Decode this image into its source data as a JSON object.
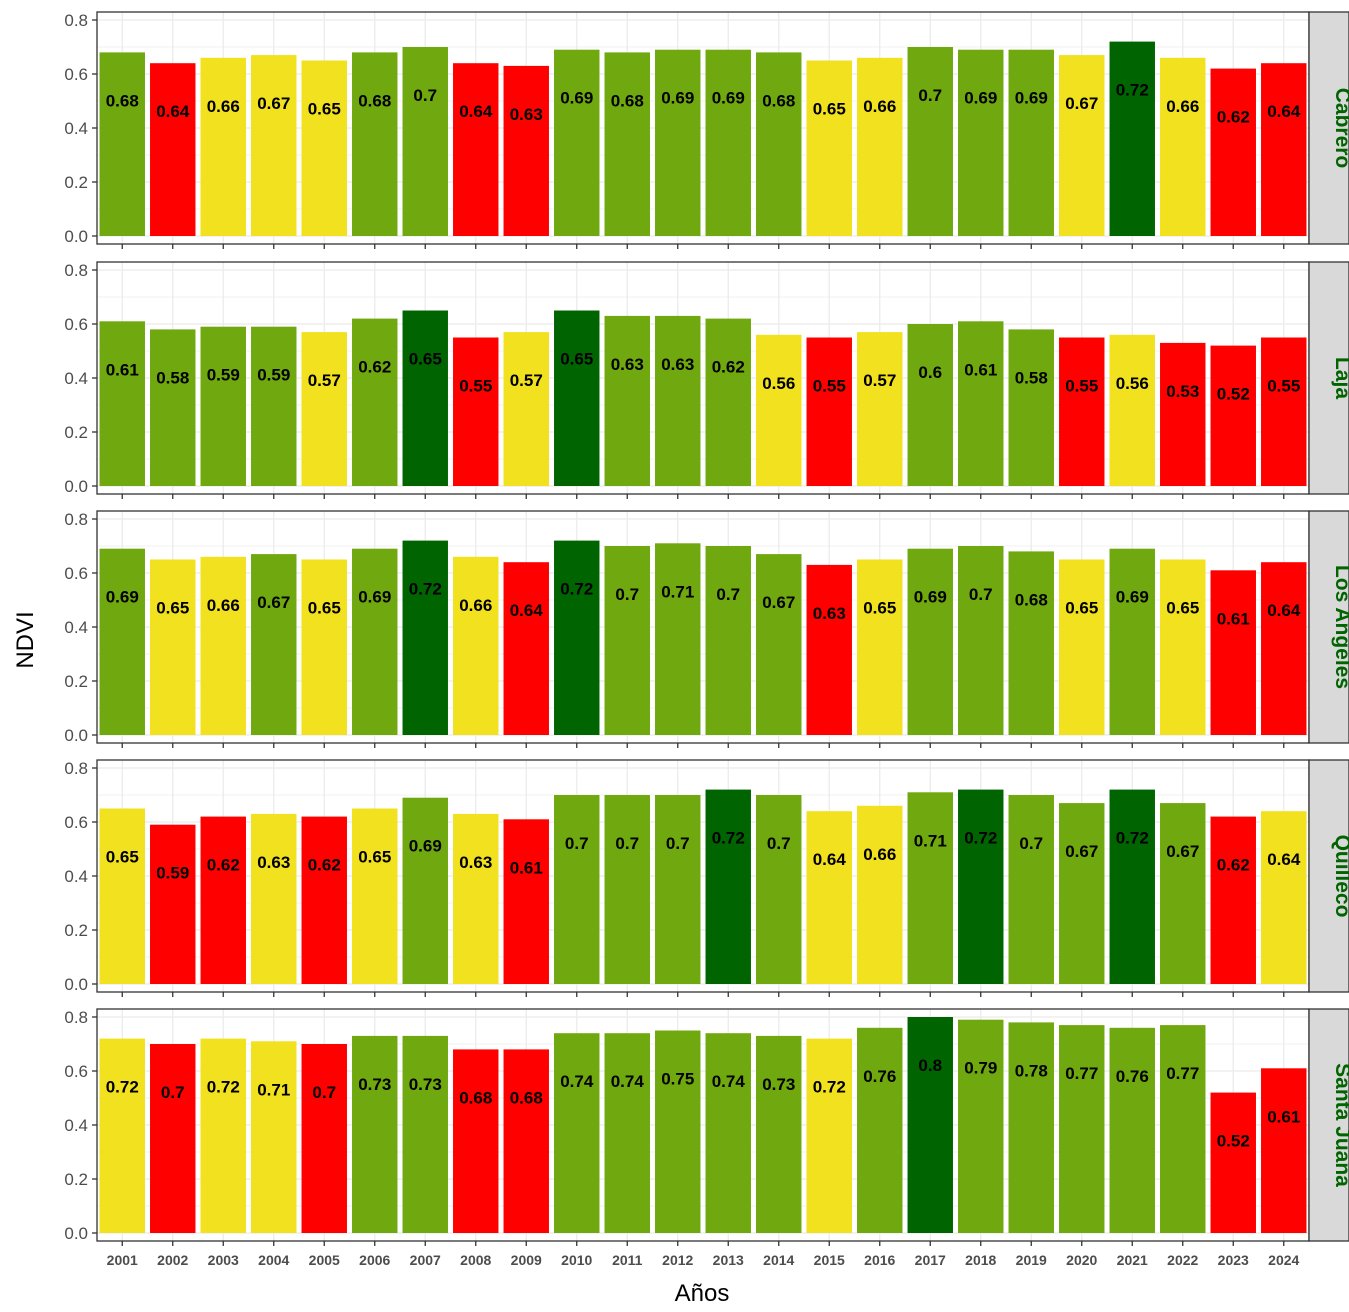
{
  "chart_data": {
    "type": "bar",
    "xlabel": "Años",
    "ylabel": "NDVI",
    "ylim": [
      0,
      0.8
    ],
    "yticks": [
      "0.0",
      "0.2",
      "0.4",
      "0.6",
      "0.8"
    ],
    "grid": true,
    "categories": [
      "2001",
      "2002",
      "2003",
      "2004",
      "2005",
      "2006",
      "2007",
      "2008",
      "2009",
      "2010",
      "2011",
      "2012",
      "2013",
      "2014",
      "2015",
      "2016",
      "2017",
      "2018",
      "2019",
      "2020",
      "2021",
      "2022",
      "2023",
      "2024"
    ],
    "colors": {
      "dark-green": "#006400",
      "green": "#6fa80f",
      "yellow": "#f2e11e",
      "red": "#ff0000",
      "strip_bg": "#d9d9d9",
      "strip_text": "#006400"
    },
    "facets": [
      {
        "name": "Cabrero",
        "values": [
          0.68,
          0.64,
          0.66,
          0.67,
          0.65,
          0.68,
          0.7,
          0.64,
          0.63,
          0.69,
          0.68,
          0.69,
          0.69,
          0.68,
          0.65,
          0.66,
          0.7,
          0.69,
          0.69,
          0.67,
          0.72,
          0.66,
          0.62,
          0.64
        ],
        "labels": [
          "0.68",
          "0.64",
          "0.66",
          "0.67",
          "0.65",
          "0.68",
          "0.7",
          "0.64",
          "0.63",
          "0.69",
          "0.68",
          "0.69",
          "0.69",
          "0.68",
          "0.65",
          "0.66",
          "0.7",
          "0.69",
          "0.69",
          "0.67",
          "0.72",
          "0.66",
          "0.62",
          "0.64"
        ],
        "bar_colors": [
          "green",
          "red",
          "yellow",
          "yellow",
          "yellow",
          "green",
          "green",
          "red",
          "red",
          "green",
          "green",
          "green",
          "green",
          "green",
          "yellow",
          "yellow",
          "green",
          "green",
          "green",
          "yellow",
          "dark-green",
          "yellow",
          "red",
          "red"
        ]
      },
      {
        "name": "Laja",
        "values": [
          0.61,
          0.58,
          0.59,
          0.59,
          0.57,
          0.62,
          0.65,
          0.55,
          0.57,
          0.65,
          0.63,
          0.63,
          0.62,
          0.56,
          0.55,
          0.57,
          0.6,
          0.61,
          0.58,
          0.55,
          0.56,
          0.53,
          0.52,
          0.55
        ],
        "labels": [
          "0.61",
          "0.58",
          "0.59",
          "0.59",
          "0.57",
          "0.62",
          "0.65",
          "0.55",
          "0.57",
          "0.65",
          "0.63",
          "0.63",
          "0.62",
          "0.56",
          "0.55",
          "0.57",
          "0.6",
          "0.61",
          "0.58",
          "0.55",
          "0.56",
          "0.53",
          "0.52",
          "0.55"
        ],
        "bar_colors": [
          "green",
          "green",
          "green",
          "green",
          "yellow",
          "green",
          "dark-green",
          "red",
          "yellow",
          "dark-green",
          "green",
          "green",
          "green",
          "yellow",
          "red",
          "yellow",
          "green",
          "green",
          "green",
          "red",
          "yellow",
          "red",
          "red",
          "red"
        ]
      },
      {
        "name": "Los Angeles",
        "values": [
          0.69,
          0.65,
          0.66,
          0.67,
          0.65,
          0.69,
          0.72,
          0.66,
          0.64,
          0.72,
          0.7,
          0.71,
          0.7,
          0.67,
          0.63,
          0.65,
          0.69,
          0.7,
          0.68,
          0.65,
          0.69,
          0.65,
          0.61,
          0.64
        ],
        "labels": [
          "0.69",
          "0.65",
          "0.66",
          "0.67",
          "0.65",
          "0.69",
          "0.72",
          "0.66",
          "0.64",
          "0.72",
          "0.7",
          "0.71",
          "0.7",
          "0.67",
          "0.63",
          "0.65",
          "0.69",
          "0.7",
          "0.68",
          "0.65",
          "0.69",
          "0.65",
          "0.61",
          "0.64"
        ],
        "bar_colors": [
          "green",
          "yellow",
          "yellow",
          "green",
          "yellow",
          "green",
          "dark-green",
          "yellow",
          "red",
          "dark-green",
          "green",
          "green",
          "green",
          "green",
          "red",
          "yellow",
          "green",
          "green",
          "green",
          "yellow",
          "green",
          "yellow",
          "red",
          "red"
        ]
      },
      {
        "name": "Quilleco",
        "values": [
          0.65,
          0.59,
          0.62,
          0.63,
          0.62,
          0.65,
          0.69,
          0.63,
          0.61,
          0.7,
          0.7,
          0.7,
          0.72,
          0.7,
          0.64,
          0.66,
          0.71,
          0.72,
          0.7,
          0.67,
          0.72,
          0.67,
          0.62,
          0.64
        ],
        "labels": [
          "0.65",
          "0.59",
          "0.62",
          "0.63",
          "0.62",
          "0.65",
          "0.69",
          "0.63",
          "0.61",
          "0.7",
          "0.7",
          "0.7",
          "0.72",
          "0.7",
          "0.64",
          "0.66",
          "0.71",
          "0.72",
          "0.7",
          "0.67",
          "0.72",
          "0.67",
          "0.62",
          "0.64"
        ],
        "bar_colors": [
          "yellow",
          "red",
          "red",
          "yellow",
          "red",
          "yellow",
          "green",
          "yellow",
          "red",
          "green",
          "green",
          "green",
          "dark-green",
          "green",
          "yellow",
          "yellow",
          "green",
          "dark-green",
          "green",
          "green",
          "dark-green",
          "green",
          "red",
          "yellow"
        ]
      },
      {
        "name": "Santa Juana",
        "values": [
          0.72,
          0.7,
          0.72,
          0.71,
          0.7,
          0.73,
          0.73,
          0.68,
          0.68,
          0.74,
          0.74,
          0.75,
          0.74,
          0.73,
          0.72,
          0.76,
          0.8,
          0.79,
          0.78,
          0.77,
          0.76,
          0.77,
          0.52,
          0.61
        ],
        "labels": [
          "0.72",
          "0.7",
          "0.72",
          "0.71",
          "0.7",
          "0.73",
          "0.73",
          "0.68",
          "0.68",
          "0.74",
          "0.74",
          "0.75",
          "0.74",
          "0.73",
          "0.72",
          "0.76",
          "0.8",
          "0.79",
          "0.78",
          "0.77",
          "0.76",
          "0.77",
          "0.52",
          "0.61"
        ],
        "bar_colors": [
          "yellow",
          "red",
          "yellow",
          "yellow",
          "red",
          "green",
          "green",
          "red",
          "red",
          "green",
          "green",
          "green",
          "green",
          "green",
          "yellow",
          "green",
          "dark-green",
          "green",
          "green",
          "green",
          "green",
          "green",
          "red",
          "red"
        ]
      }
    ]
  }
}
